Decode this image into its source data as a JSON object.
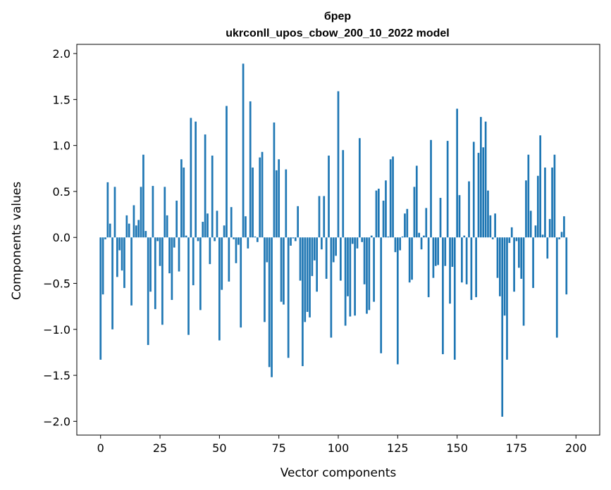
{
  "chart_data": {
    "type": "bar",
    "title": "бреp",
    "subtitle": "ukrconll_upos_cbow_200_10_2022 model",
    "xlabel": "Vector components",
    "ylabel": "Components values",
    "xlim": [
      -10,
      210
    ],
    "ylim": [
      -2.15,
      2.1
    ],
    "xticks": [
      0,
      25,
      50,
      75,
      100,
      125,
      150,
      175,
      200
    ],
    "yticks": [
      -2.0,
      -1.5,
      -1.0,
      -0.5,
      0.0,
      0.5,
      1.0,
      1.5,
      2.0
    ],
    "ytick_labels": [
      "−2.0",
      "−1.5",
      "−1.0",
      "−0.5",
      "0.0",
      "0.5",
      "1.0",
      "1.5",
      "2.0"
    ],
    "bar_color": "#1f77b4",
    "grid": false,
    "values": [
      -1.33,
      -0.62,
      -0.02,
      0.6,
      0.15,
      -1.0,
      0.55,
      -0.43,
      -0.14,
      -0.36,
      -0.55,
      0.24,
      0.15,
      -0.74,
      0.35,
      0.13,
      0.19,
      0.55,
      0.9,
      0.07,
      -1.17,
      -0.59,
      0.56,
      -0.78,
      -0.04,
      -0.31,
      -0.95,
      0.55,
      0.24,
      -0.39,
      -0.68,
      -0.11,
      0.4,
      -0.37,
      0.85,
      0.76,
      0.02,
      -1.06,
      1.3,
      -0.52,
      1.26,
      -0.04,
      -0.79,
      0.17,
      1.12,
      0.26,
      -0.29,
      0.89,
      -0.04,
      0.29,
      -1.12,
      -0.57,
      0.13,
      1.43,
      -0.48,
      0.33,
      -0.02,
      -0.28,
      -0.08,
      -0.98,
      1.89,
      0.23,
      -0.12,
      1.48,
      0.76,
      0.01,
      -0.05,
      0.87,
      0.93,
      -0.92,
      -0.27,
      -1.41,
      -1.52,
      1.25,
      0.73,
      0.85,
      -0.7,
      -0.73,
      0.74,
      -1.31,
      -0.09,
      -0.01,
      -0.04,
      0.34,
      -0.47,
      -1.4,
      -0.92,
      -0.81,
      -0.87,
      -0.42,
      -0.25,
      -0.59,
      0.45,
      -0.13,
      0.45,
      -0.45,
      0.89,
      -1.09,
      -0.27,
      -0.2,
      1.59,
      -0.47,
      0.95,
      -0.96,
      -0.64,
      -0.86,
      -0.07,
      -0.85,
      -0.12,
      1.08,
      -0.05,
      -0.51,
      -0.83,
      -0.79,
      0.02,
      -0.7,
      0.51,
      0.53,
      -1.26,
      0.4,
      0.62,
      0.01,
      0.85,
      0.88,
      -0.16,
      -1.38,
      -0.14,
      0.01,
      0.26,
      0.31,
      -0.49,
      -0.46,
      0.55,
      0.78,
      0.05,
      -0.13,
      0.02,
      0.32,
      -0.65,
      1.06,
      -0.44,
      -0.31,
      -0.3,
      0.43,
      -1.27,
      -0.31,
      1.05,
      -0.72,
      -0.32,
      -1.33,
      1.4,
      0.46,
      -0.49,
      0.02,
      -0.51,
      0.61,
      -0.68,
      1.04,
      -0.65,
      0.92,
      1.31,
      0.98,
      1.26,
      0.51,
      0.24,
      -0.02,
      0.26,
      -0.44,
      -0.64,
      -1.95,
      -0.85,
      -1.33,
      -0.06,
      0.11,
      -0.59,
      -0.04,
      -0.33,
      -0.45,
      -0.96,
      0.62,
      0.9,
      0.29,
      -0.55,
      0.13,
      0.67,
      1.11,
      0.03,
      0.76,
      -0.23,
      0.2,
      0.76,
      0.9,
      -1.09,
      -0.02,
      0.06,
      0.23,
      -0.62
    ]
  }
}
